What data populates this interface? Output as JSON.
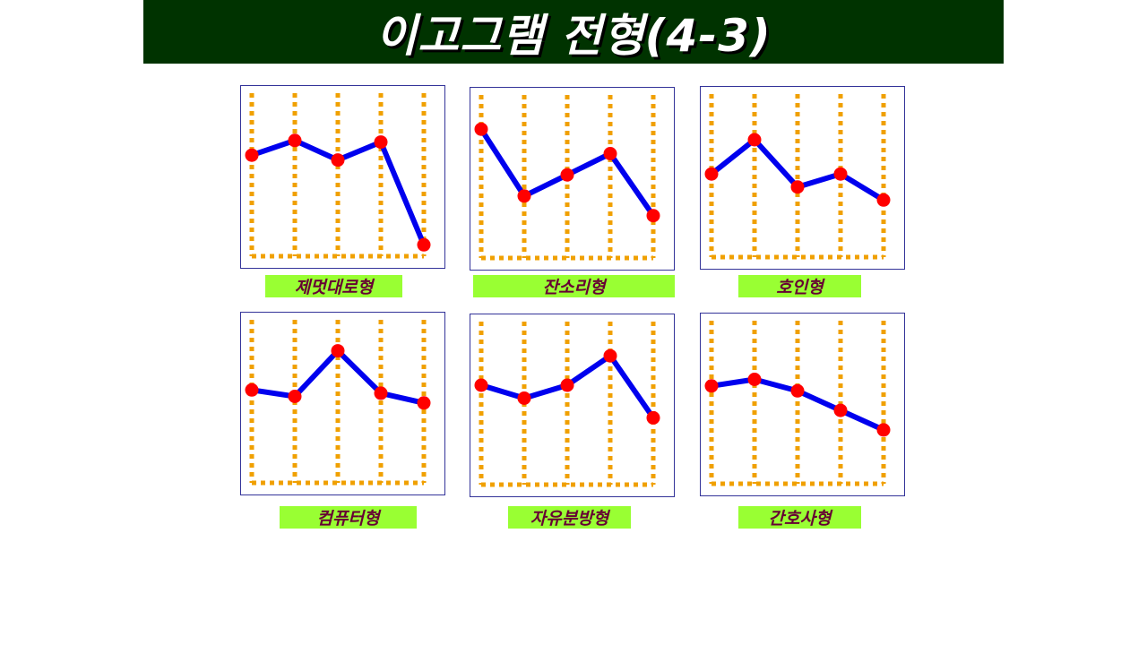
{
  "title": "이고그램 전형(4-3)",
  "colors": {
    "title_bg": "#003300",
    "title_text": "#ffffff",
    "line": "#0000ee",
    "point": "#ff0000",
    "grid": "#f0a000",
    "label_bg": "#99ff33",
    "label_text": "#660033"
  },
  "chart_data": [
    {
      "type": "line",
      "label": "제멋대로형",
      "values": [
        62,
        71,
        59,
        70,
        7
      ],
      "ylim": [
        0,
        100
      ],
      "grid": true
    },
    {
      "type": "line",
      "label": "잔소리형",
      "values": [
        79,
        38,
        51,
        64,
        26
      ],
      "ylim": [
        0,
        100
      ],
      "grid": true
    },
    {
      "type": "line",
      "label": "호인형",
      "values": [
        51,
        72,
        43,
        51,
        35
      ],
      "ylim": [
        0,
        100
      ],
      "grid": true
    },
    {
      "type": "line",
      "label": "컴퓨터형",
      "values": [
        57,
        53,
        81,
        55,
        49
      ],
      "ylim": [
        0,
        100
      ],
      "grid": true
    },
    {
      "type": "line",
      "label": "자유분방형",
      "values": [
        61,
        53,
        61,
        79,
        41
      ],
      "ylim": [
        0,
        100
      ],
      "grid": true
    },
    {
      "type": "line",
      "label": "간호사형",
      "values": [
        60,
        64,
        57,
        45,
        33
      ],
      "ylim": [
        0,
        100
      ],
      "grid": true
    }
  ]
}
